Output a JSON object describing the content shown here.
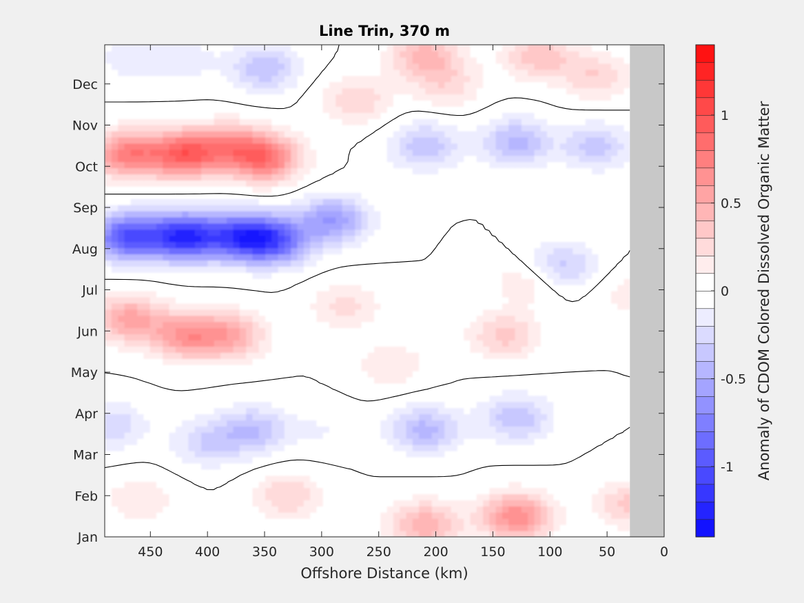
{
  "chart_data": {
    "type": "heatmap",
    "subtype": "filled-contour",
    "title": "Line Trin, 370 m",
    "xlabel": "Offshore Distance (km)",
    "ylabel": "",
    "xlim": [
      0,
      490
    ],
    "x_reversed": true,
    "x_ticks": [
      450,
      400,
      350,
      300,
      250,
      200,
      150,
      100,
      50,
      0
    ],
    "x_tick_labels": [
      "450",
      "400",
      "350",
      "300",
      "250",
      "200",
      "150",
      "100",
      "50",
      "0"
    ],
    "y_tick_labels": [
      "Jan",
      "Feb",
      "Mar",
      "Apr",
      "May",
      "Jun",
      "Jul",
      "Aug",
      "Sep",
      "Oct",
      "Nov",
      "Dec"
    ],
    "y_ticks_month_index": [
      1,
      2,
      3,
      4,
      5,
      6,
      7,
      8,
      9,
      10,
      11,
      12
    ],
    "ylim_month_index": [
      1,
      12.95
    ],
    "no_data_region_km": [
      0,
      30
    ],
    "no_data_color": "#c8c8c8",
    "zero_contour_color": "#000000",
    "colorbar": {
      "label": "Anomaly of CDOM Colored Dissolved Organic Matter",
      "range": [
        -1.4,
        1.4
      ],
      "step": 0.1,
      "ticks": [
        1,
        0.5,
        0,
        -0.5,
        -1
      ],
      "tick_labels": [
        "1",
        "0.5",
        "0",
        "-0.5",
        "-1"
      ],
      "low_color": "#0000ff",
      "zero_color": "#ffffff",
      "high_color": "#ff0000"
    },
    "features": [
      {
        "x": 420,
        "y": 8.3,
        "value": -1.2
      },
      {
        "x": 470,
        "y": 8.3,
        "value": -1.0
      },
      {
        "x": 370,
        "y": 8.3,
        "value": -1.0
      },
      {
        "x": 340,
        "y": 8.2,
        "value": -0.8
      },
      {
        "x": 290,
        "y": 8.7,
        "value": -0.6
      },
      {
        "x": 210,
        "y": 10.5,
        "value": -0.4
      },
      {
        "x": 130,
        "y": 10.6,
        "value": -0.45
      },
      {
        "x": 90,
        "y": 7.6,
        "value": -0.35
      },
      {
        "x": 60,
        "y": 10.5,
        "value": -0.35
      },
      {
        "x": 350,
        "y": 12.4,
        "value": -0.4
      },
      {
        "x": 420,
        "y": 12.6,
        "value": -0.15
      },
      {
        "x": 470,
        "y": 12.6,
        "value": -0.15
      },
      {
        "x": 360,
        "y": 3.6,
        "value": -0.4
      },
      {
        "x": 400,
        "y": 3.3,
        "value": -0.3
      },
      {
        "x": 210,
        "y": 3.6,
        "value": -0.45
      },
      {
        "x": 130,
        "y": 3.9,
        "value": -0.4
      },
      {
        "x": 485,
        "y": 3.7,
        "value": -0.3
      },
      {
        "x": 300,
        "y": 3.6,
        "value": -0.1
      },
      {
        "x": 420,
        "y": 10.3,
        "value": 0.9
      },
      {
        "x": 470,
        "y": 10.3,
        "value": 0.75
      },
      {
        "x": 350,
        "y": 10.2,
        "value": 0.8
      },
      {
        "x": 380,
        "y": 10.5,
        "value": 0.5
      },
      {
        "x": 420,
        "y": 5.9,
        "value": 0.6
      },
      {
        "x": 470,
        "y": 6.3,
        "value": 0.55
      },
      {
        "x": 380,
        "y": 5.9,
        "value": 0.5
      },
      {
        "x": 280,
        "y": 6.6,
        "value": 0.25
      },
      {
        "x": 140,
        "y": 5.9,
        "value": 0.35
      },
      {
        "x": 130,
        "y": 1.5,
        "value": 0.7
      },
      {
        "x": 210,
        "y": 1.3,
        "value": 0.5
      },
      {
        "x": 330,
        "y": 2.0,
        "value": 0.3
      },
      {
        "x": 460,
        "y": 1.9,
        "value": 0.2
      },
      {
        "x": 30,
        "y": 1.8,
        "value": 0.35
      },
      {
        "x": 210,
        "y": 12.7,
        "value": 0.45
      },
      {
        "x": 110,
        "y": 12.7,
        "value": 0.4
      },
      {
        "x": 270,
        "y": 11.6,
        "value": 0.3
      },
      {
        "x": 60,
        "y": 12.2,
        "value": 0.3
      },
      {
        "x": 190,
        "y": 12.0,
        "value": 0.25
      },
      {
        "x": 240,
        "y": 5.2,
        "value": 0.2
      },
      {
        "x": 30,
        "y": 6.9,
        "value": 0.15
      },
      {
        "x": 120,
        "y": 7.2,
        "value": 0.2
      }
    ]
  }
}
